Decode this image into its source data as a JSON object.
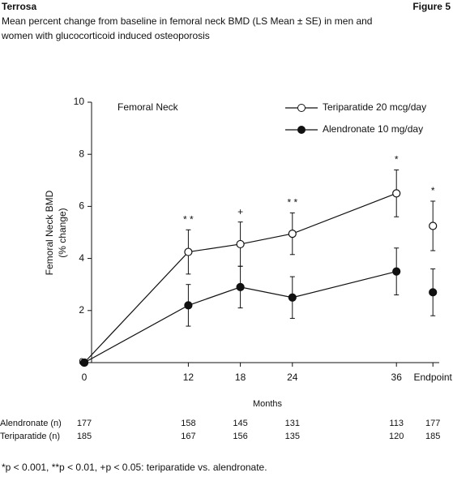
{
  "header": {
    "title": "Terrosa",
    "figure": "Figure 5"
  },
  "subtitle": [
    "Mean percent change from baseline in femoral neck BMD (LS Mean ± SE) in men and",
    "women with glucocorticoid induced osteoporosis"
  ],
  "chart_data": {
    "type": "line",
    "panel_label": "Femoral Neck",
    "y_label": [
      "Femoral Neck BMD",
      "(% change)"
    ],
    "x_label": "Months",
    "categories": [
      "0",
      "12",
      "18",
      "24",
      "36",
      "Endpoint"
    ],
    "ylim": [
      0,
      10
    ],
    "yticks": [
      0,
      2,
      4,
      6,
      8,
      10
    ],
    "series": [
      {
        "name": "Teriparatide 20 mcg/day",
        "marker": "open",
        "color": "#111111",
        "values": [
          0,
          4.25,
          4.55,
          4.95,
          6.5,
          5.25
        ],
        "errors": [
          null,
          0.85,
          0.85,
          0.8,
          0.9,
          0.95
        ]
      },
      {
        "name": "Alendronate 10 mg/day",
        "marker": "filled",
        "color": "#111111",
        "values": [
          0,
          2.2,
          2.9,
          2.5,
          3.5,
          2.7
        ],
        "errors": [
          null,
          0.8,
          0.8,
          0.8,
          0.9,
          0.9
        ]
      }
    ],
    "annotations": [
      null,
      "* *",
      "+",
      "* *",
      "*",
      "*"
    ]
  },
  "table": {
    "rows": [
      {
        "label": "Alendronate (n)",
        "values": [
          177,
          158,
          145,
          131,
          113,
          177
        ]
      },
      {
        "label": "Teriparatide (n)",
        "values": [
          185,
          167,
          156,
          135,
          120,
          185
        ]
      }
    ]
  },
  "footnote": "*p < 0.001,  **p < 0.01, +p < 0.05: teriparatide vs. alendronate."
}
